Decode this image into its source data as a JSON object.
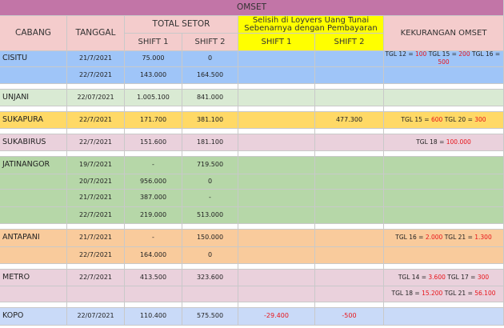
{
  "colors": {
    "omset_header": "#c275a7",
    "header": "#f4cccc",
    "yellow": "#ffff00",
    "blue": "#9fc5f8",
    "lightgreen": "#d9ead3",
    "orange": "#ffd966",
    "pink": "#ead1dc",
    "green": "#b6d7a8",
    "peach": "#f9cb9c",
    "kopo": "#c9daf8",
    "negative": "#e8141a"
  },
  "header": {
    "omset": "OMSET",
    "cabang": "CABANG",
    "tanggal": "TANGGAL",
    "total_setor": "TOTAL SETOR",
    "shift1": "SHIFT 1",
    "shift2": "SHIFT 2",
    "selisih": "Selisih di Loyvers Uang Tunai Sebenarnya dengan Pembayaran",
    "selisih_shift1": "SHIFT 1",
    "selisih_shift2": "SHIFT 2",
    "kekurangan": "KEKURANGAN OMSET"
  },
  "rows": [
    {
      "cabang": "CISITU",
      "tanggal": "21/7/2021",
      "shift1": "75.000",
      "shift2": "0",
      "sel1": "",
      "sel2": "",
      "kur": [
        [
          "TGL 12 = ",
          false
        ],
        [
          "100",
          true
        ],
        [
          " TGL 15 = ",
          false
        ],
        [
          "200",
          true
        ],
        [
          " TGL 16 = ",
          false
        ],
        [
          "500",
          true
        ]
      ]
    },
    {
      "cabang": "",
      "tanggal": "22/7/2021",
      "shift1": "143.000",
      "shift2": "164.500",
      "sel1": "",
      "sel2": "",
      "kur": []
    },
    {
      "cabang": "",
      "tanggal": "",
      "shift1": "",
      "shift2": "",
      "sel1": "",
      "sel2": "",
      "kur": []
    },
    {
      "cabang": "UNJANI",
      "tanggal": "22/07/2021",
      "shift1": "1.005.100",
      "shift2": "841.000",
      "sel1": "",
      "sel2": "",
      "kur": []
    },
    {
      "cabang": "",
      "tanggal": "",
      "shift1": "",
      "shift2": "",
      "sel1": "",
      "sel2": "",
      "kur": []
    },
    {
      "cabang": "SUKAPURA",
      "tanggal": "22/7/2021",
      "shift1": "171.700",
      "shift2": "381.100",
      "sel1": "",
      "sel2": "477.300",
      "kur": [
        [
          "TGL 15 = ",
          false
        ],
        [
          "600",
          true
        ],
        [
          " TGL 20 = ",
          false
        ],
        [
          "300",
          true
        ]
      ]
    },
    {
      "cabang": "",
      "tanggal": "",
      "shift1": "",
      "shift2": "",
      "sel1": "",
      "sel2": "",
      "kur": []
    },
    {
      "cabang": "SUKABIRUS",
      "tanggal": "22/7/2021",
      "shift1": "151.600",
      "shift2": "181.100",
      "sel1": "",
      "sel2": "",
      "kur": [
        [
          "TGL 18 = ",
          false
        ],
        [
          "100.000",
          true
        ]
      ]
    },
    {
      "cabang": "",
      "tanggal": "",
      "shift1": "",
      "shift2": "",
      "sel1": "",
      "sel2": "",
      "kur": []
    },
    {
      "cabang": "JATINANGOR",
      "tanggal": "19/7/2021",
      "shift1": "-",
      "shift2": "719.500",
      "sel1": "",
      "sel2": "",
      "kur": []
    },
    {
      "cabang": "",
      "tanggal": "20/7/2021",
      "shift1": "956.000",
      "shift2": "0",
      "sel1": "",
      "sel2": "",
      "kur": []
    },
    {
      "cabang": "",
      "tanggal": "21/7/2021",
      "shift1": "387.000",
      "shift2": "-",
      "sel1": "",
      "sel2": "",
      "kur": []
    },
    {
      "cabang": "",
      "tanggal": "22/7/2021",
      "shift1": "219.000",
      "shift2": "513.000",
      "sel1": "",
      "sel2": "",
      "kur": []
    },
    {
      "cabang": "",
      "tanggal": "",
      "shift1": "",
      "shift2": "",
      "sel1": "",
      "sel2": "",
      "kur": []
    },
    {
      "cabang": "ANTAPANI",
      "tanggal": "21/7/2021",
      "shift1": "-",
      "shift2": "150.000",
      "sel1": "",
      "sel2": "",
      "kur": [
        [
          "TGL 16 = ",
          false
        ],
        [
          "2.000",
          true
        ],
        [
          " TGL 21 = ",
          false
        ],
        [
          "1.300",
          true
        ]
      ]
    },
    {
      "cabang": "",
      "tanggal": "22/7/2021",
      "shift1": "164.000",
      "shift2": "0",
      "sel1": "",
      "sel2": "",
      "kur": []
    },
    {
      "cabang": "",
      "tanggal": "",
      "shift1": "",
      "shift2": "",
      "sel1": "",
      "sel2": "",
      "kur": []
    },
    {
      "cabang": "METRO",
      "tanggal": "22/7/2021",
      "shift1": "413.500",
      "shift2": "323.600",
      "sel1": "",
      "sel2": "",
      "kur": [
        [
          "TGL 14 = ",
          false
        ],
        [
          "3.600",
          true
        ],
        [
          " TGL 17 = ",
          false
        ],
        [
          "300",
          true
        ]
      ]
    },
    {
      "cabang": "",
      "tanggal": "",
      "shift1": "",
      "shift2": "",
      "sel1": "",
      "sel2": "",
      "kur": [
        [
          "TGL 18 = ",
          false
        ],
        [
          "15.200",
          true
        ],
        [
          " TGL 21 = ",
          false
        ],
        [
          "56.100",
          true
        ]
      ]
    },
    {
      "cabang": "",
      "tanggal": "",
      "shift1": "",
      "shift2": "",
      "sel1": "",
      "sel2": "",
      "kur": []
    },
    {
      "cabang": "KOPO",
      "tanggal": "22/07/2021",
      "shift1": "110.400",
      "shift2": "575.500",
      "sel1": "-29.400",
      "sel2": "-500",
      "kur": []
    }
  ]
}
